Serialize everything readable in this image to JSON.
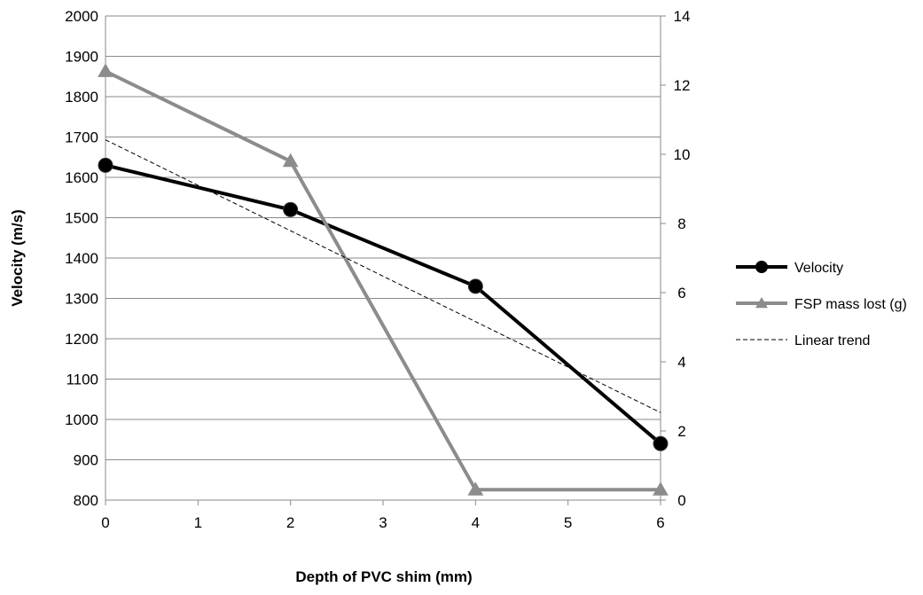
{
  "chart_data": {
    "type": "line",
    "x": [
      0,
      2,
      4,
      6
    ],
    "xlabel": "Depth of PVC shim (mm)",
    "ylabel": "Velocity (m/s)",
    "y2label": "",
    "xlim": [
      0,
      6
    ],
    "ylim": [
      800,
      2000
    ],
    "y2lim": [
      0,
      14
    ],
    "x_ticks": [
      0,
      1,
      2,
      3,
      4,
      5,
      6
    ],
    "y_ticks": [
      800,
      900,
      1000,
      1100,
      1200,
      1300,
      1400,
      1500,
      1600,
      1700,
      1800,
      1900,
      2000
    ],
    "y2_ticks": [
      0,
      2,
      4,
      6,
      8,
      10,
      12,
      14
    ],
    "grid": "horizontal",
    "legend_position": "right",
    "series": [
      {
        "name": "Velocity",
        "axis": "left",
        "marker": "circle",
        "color": "#000000",
        "x": [
          0,
          2,
          4,
          6
        ],
        "values": [
          1630,
          1520,
          1330,
          940
        ]
      },
      {
        "name": "FSP mass lost (g)",
        "axis": "right",
        "marker": "triangle",
        "color": "#8c8c8c",
        "x": [
          0,
          2,
          4,
          6
        ],
        "values": [
          12.4,
          9.8,
          0.3,
          0.3
        ]
      },
      {
        "name": "Linear trend",
        "axis": "left",
        "marker": "none",
        "dashed": true,
        "color": "#000000",
        "x": [
          0,
          6
        ],
        "values": [
          1693,
          1017
        ]
      }
    ]
  }
}
